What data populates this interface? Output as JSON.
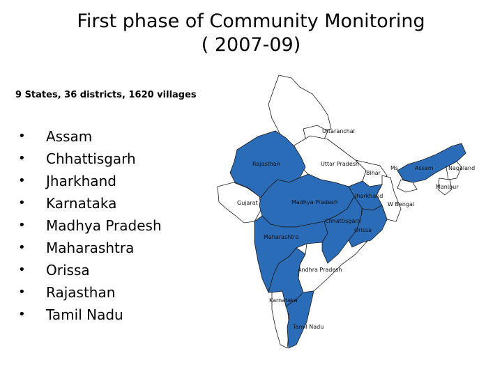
{
  "title": {
    "line1": "First phase of Community Monitoring",
    "line2": "( 2007-09)"
  },
  "subtitle": "9 States, 36 districts, 1620 villages",
  "states": [
    "Assam",
    "Chhattisgarh",
    "Jharkhand",
    "Karnataka",
    "Madhya Pradesh",
    "Maharashtra",
    "Orissa",
    "Rajasthan",
    "Tamil Nadu"
  ],
  "bullet_glyph": "•",
  "map": {
    "highlight_color": "#2b6cb8",
    "border_color": "#1a1a1a",
    "labels": {
      "uttaranchal": "Uttaranchal",
      "rajasthan": "Rajasthan",
      "uttar_pradesh": "Uttar Pradesh",
      "bihar": "Bihar",
      "assam": "Assam",
      "nagaland": "Nagaland",
      "manipur": "Manipur",
      "jharkhand": "Jharkhand",
      "gujarat": "Gujarat",
      "madhya_pradesh": "Madhya Pradesh",
      "w_bengal": "W Bengal",
      "chhattisgarh": "Chhattisgarh",
      "orissa": "Orissa",
      "maharashtra": "Maharashtra",
      "andhra_pradesh": "Andhra Pradesh",
      "karnataka": "Karnataka",
      "tamil_nadu": "Tamil Nadu",
      "abbr_small": "Ms"
    }
  }
}
